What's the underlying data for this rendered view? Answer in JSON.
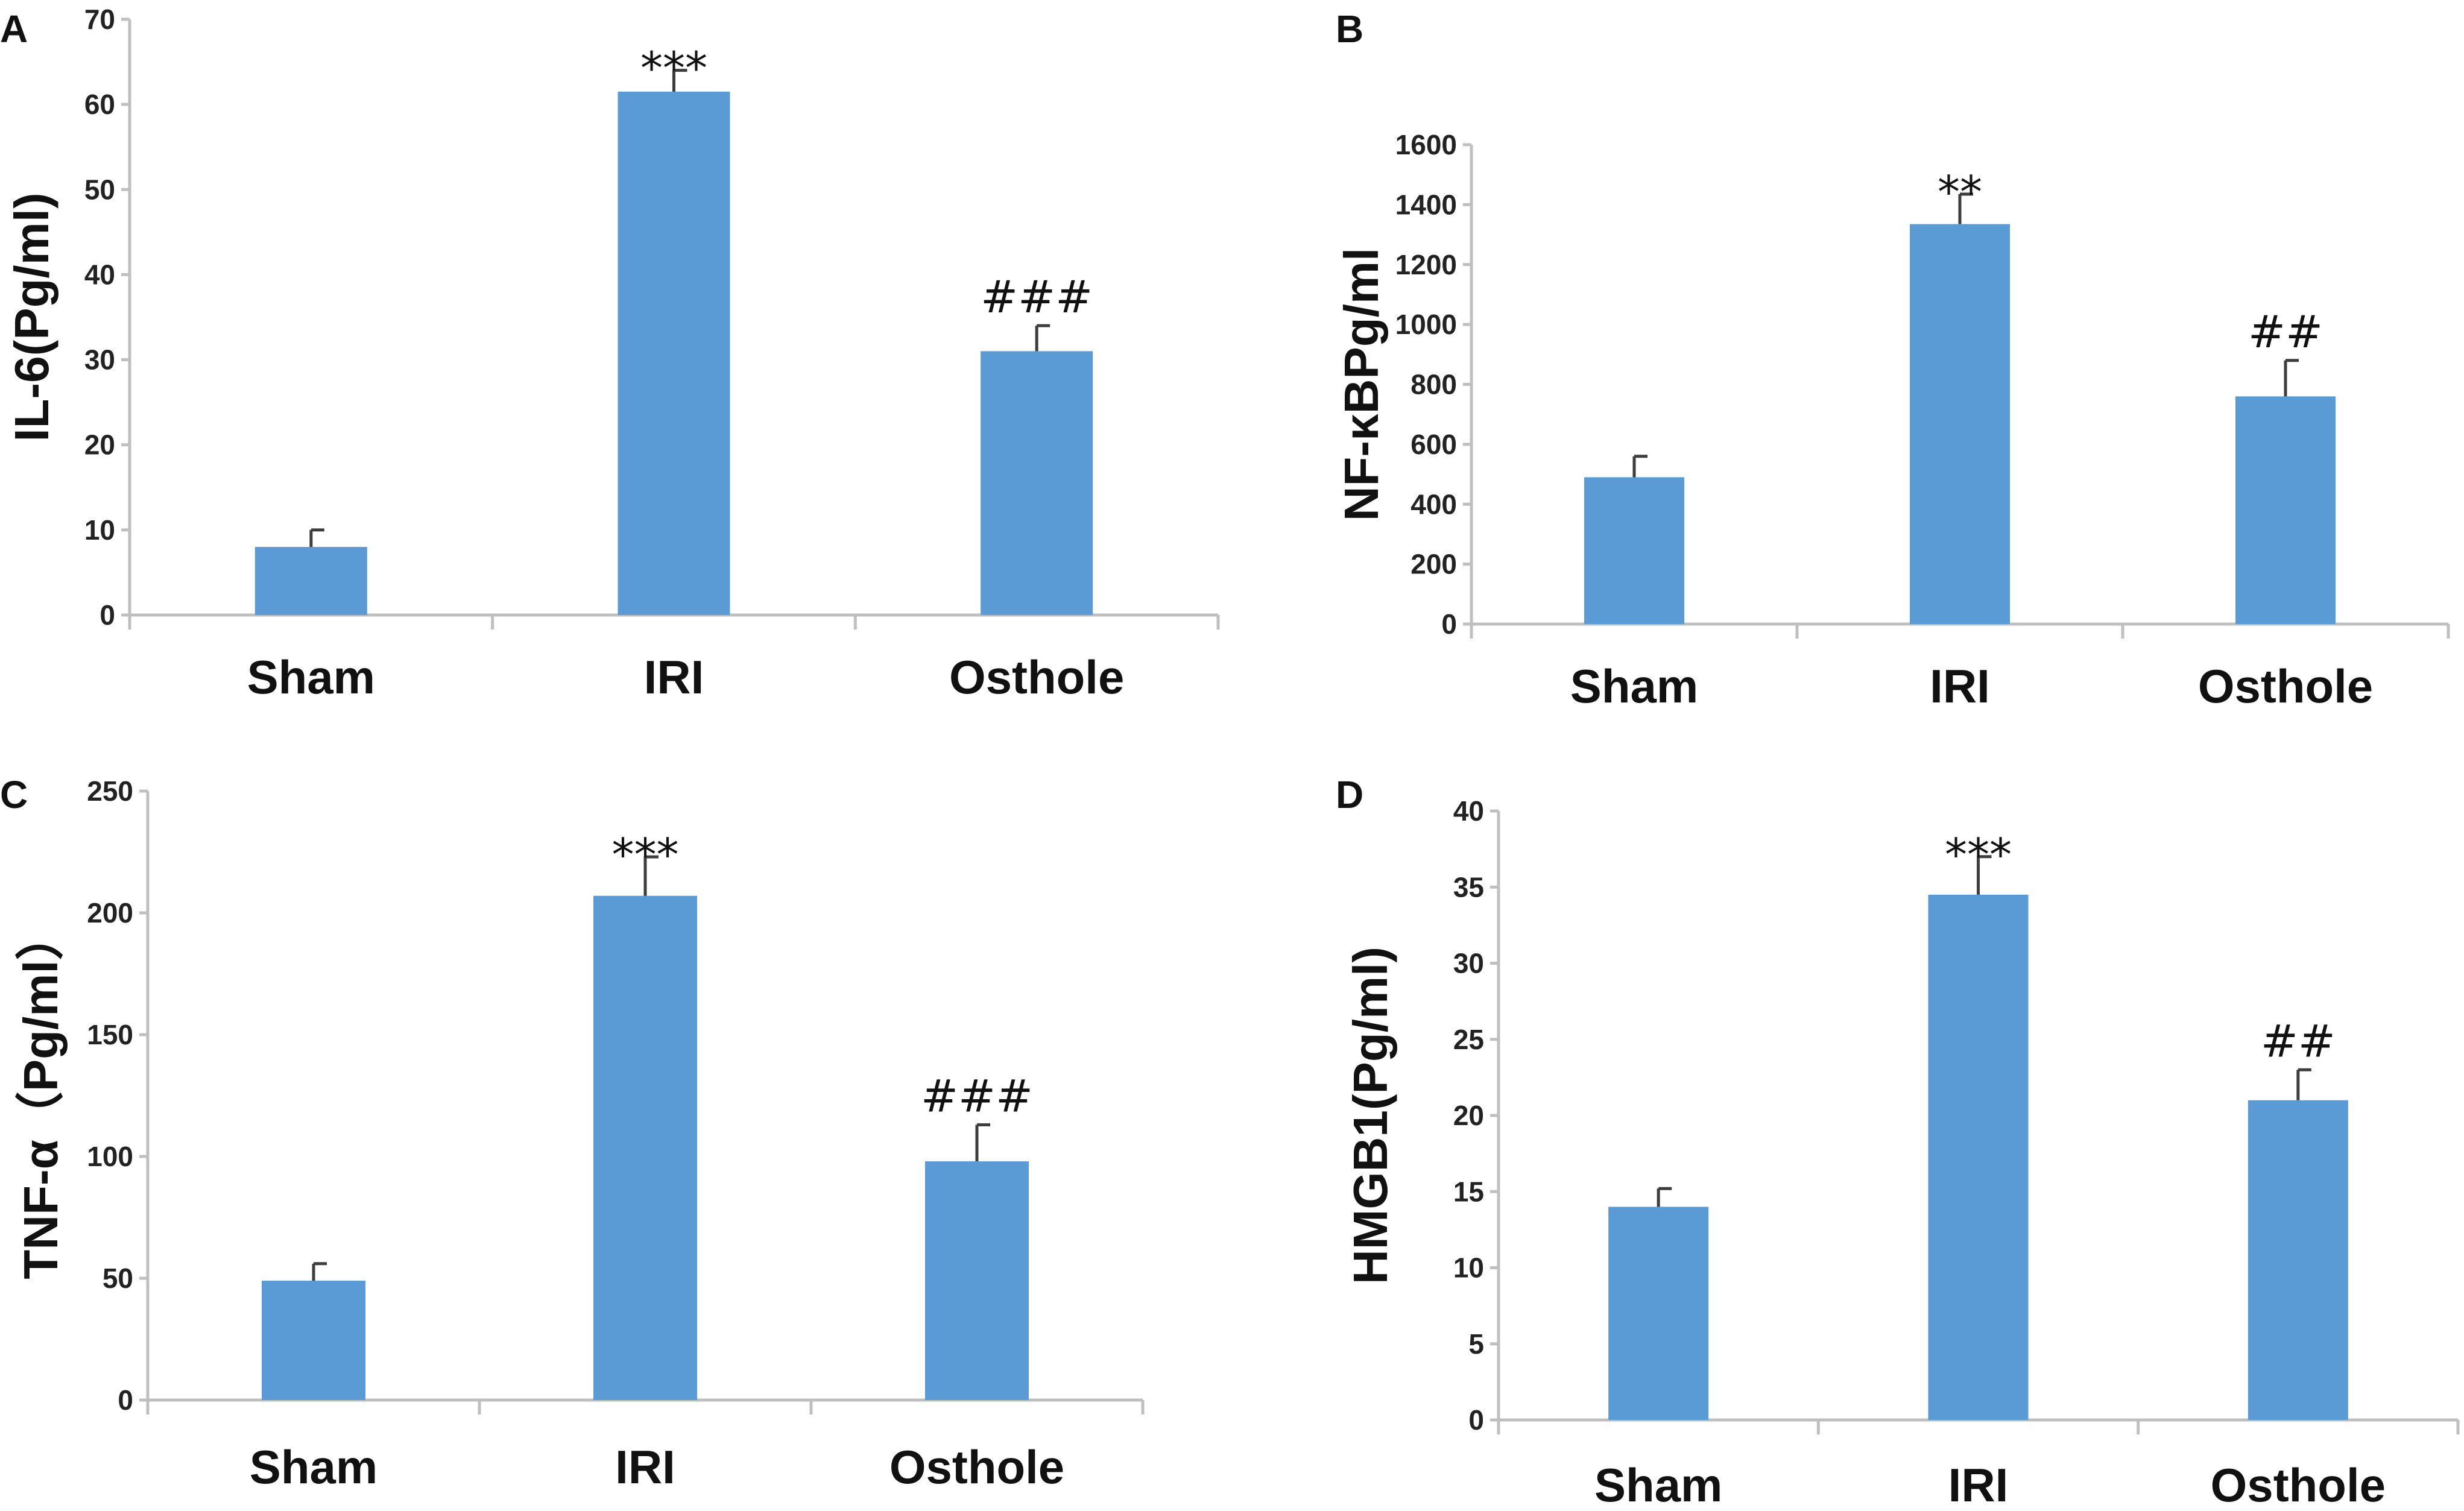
{
  "chart_data": [
    {
      "panel": "A",
      "type": "bar",
      "categories": [
        "Sham",
        "IRI",
        "Osthole"
      ],
      "values": [
        8,
        61.5,
        31
      ],
      "errors": [
        2,
        2.5,
        3
      ],
      "annotations": [
        "",
        "***",
        "###"
      ],
      "ylabel": "IL-6(Pg/ml)",
      "ylim": [
        0,
        70
      ],
      "yticks": [
        0,
        10,
        20,
        30,
        40,
        50,
        60,
        70
      ],
      "ytick_labels": [
        "0",
        "10",
        "20",
        "30",
        "40",
        "50",
        "60",
        "70"
      ]
    },
    {
      "panel": "B",
      "type": "bar",
      "categories": [
        "Sham",
        "IRI",
        "Osthole"
      ],
      "values": [
        490,
        1335,
        760
      ],
      "errors": [
        70,
        100,
        120
      ],
      "annotations": [
        "",
        "**",
        "##"
      ],
      "ylabel": "NF-κBPg/ml",
      "ylim": [
        0,
        1600
      ],
      "yticks": [
        0,
        200,
        400,
        600,
        800,
        1000,
        1200,
        1400,
        1600
      ],
      "ytick_labels": [
        "0",
        "200",
        "400",
        "600",
        "800",
        "1000",
        "1200",
        "1400",
        "1600"
      ]
    },
    {
      "panel": "C",
      "type": "bar",
      "categories": [
        "Sham",
        "IRI",
        "Osthole"
      ],
      "values": [
        49,
        207,
        98
      ],
      "errors": [
        7,
        16,
        15
      ],
      "annotations": [
        "",
        "***",
        "###"
      ],
      "ylabel": "TNF-α（Pg/ml）",
      "ylim": [
        0,
        250
      ],
      "yticks": [
        0,
        50,
        100,
        150,
        200,
        250
      ],
      "ytick_labels": [
        "0",
        "50",
        "100",
        "150",
        "200",
        "250"
      ]
    },
    {
      "panel": "D",
      "type": "bar",
      "categories": [
        "Sham",
        "IRI",
        "Osthole"
      ],
      "values": [
        14,
        34.5,
        21
      ],
      "errors": [
        1.2,
        2.5,
        2
      ],
      "annotations": [
        "",
        "***",
        "##"
      ],
      "ylabel": "HMGB1(Pg/ml)",
      "ylim": [
        0,
        40
      ],
      "yticks": [
        0,
        5,
        10,
        15,
        20,
        25,
        30,
        35,
        40
      ],
      "ytick_labels": [
        "0",
        "5",
        "10",
        "15",
        "20",
        "25",
        "30",
        "35",
        "40"
      ]
    }
  ],
  "colors": {
    "bar": "#5b9bd5",
    "axis": "#bfbfbf",
    "error": "#3d3d3d"
  }
}
